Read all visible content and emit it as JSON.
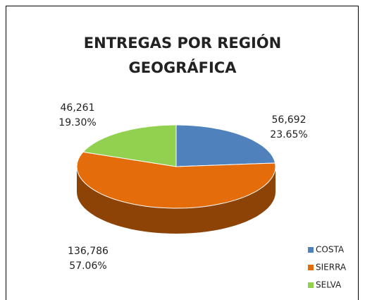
{
  "chart_data": {
    "type": "pie3d",
    "title": "ENTREGAS POR REGIÓN GEOGRÁFICA",
    "categories": [
      "COSTA",
      "SIERRA",
      "SELVA"
    ],
    "values": [
      56692,
      136786,
      46261
    ],
    "value_labels": [
      "56,692",
      "136,786",
      "46,261"
    ],
    "percentages": [
      23.65,
      57.06,
      19.3
    ],
    "percentage_labels": [
      "23.65%",
      "57.06%",
      "19.30%"
    ],
    "colors": [
      "#4f81bd",
      "#e46c0a",
      "#92d050"
    ],
    "legend": "bottom-right"
  }
}
